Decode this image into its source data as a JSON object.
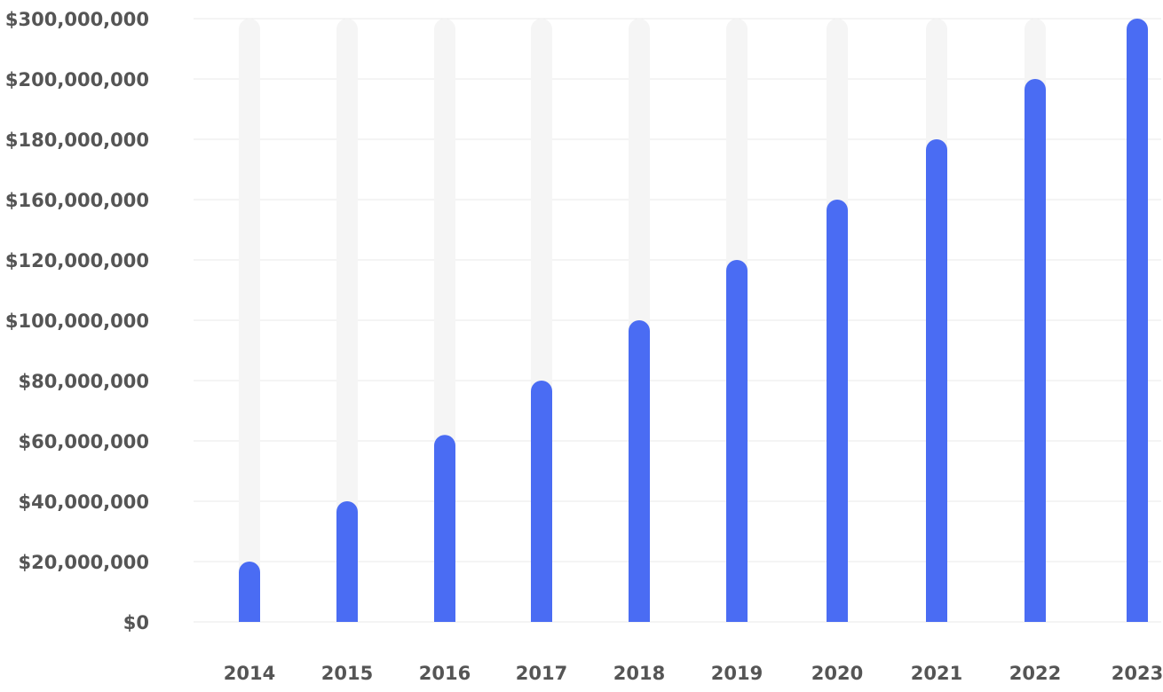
{
  "chart_data": {
    "type": "bar",
    "title": "",
    "xlabel": "",
    "ylabel": "",
    "categories": [
      "2014",
      "2015",
      "2016",
      "2017",
      "2018",
      "2019",
      "2020",
      "2021",
      "2022",
      "2023"
    ],
    "values": [
      20000000,
      40000000,
      62000000,
      80000000,
      100000000,
      120000000,
      160000000,
      180000000,
      200000000,
      300000000
    ],
    "y_ticks": [
      0,
      20000000,
      40000000,
      60000000,
      80000000,
      100000000,
      120000000,
      160000000,
      180000000,
      200000000,
      300000000
    ],
    "y_tick_labels": [
      "$0",
      "$20,000,000",
      "$40,000,000",
      "$60,000,000",
      "$80,000,000",
      "$100,000,000",
      "$120,000,000",
      "$160,000,000",
      "$180,000,000",
      "$200,000,000",
      "$300,000,000"
    ],
    "ylim": [
      0,
      300000000
    ],
    "grid": true,
    "legend": "none",
    "colors": {
      "bar": "#4a6cf3",
      "track": "#f5f5f5",
      "grid": "#e8e8e8",
      "text": "#555555"
    }
  }
}
